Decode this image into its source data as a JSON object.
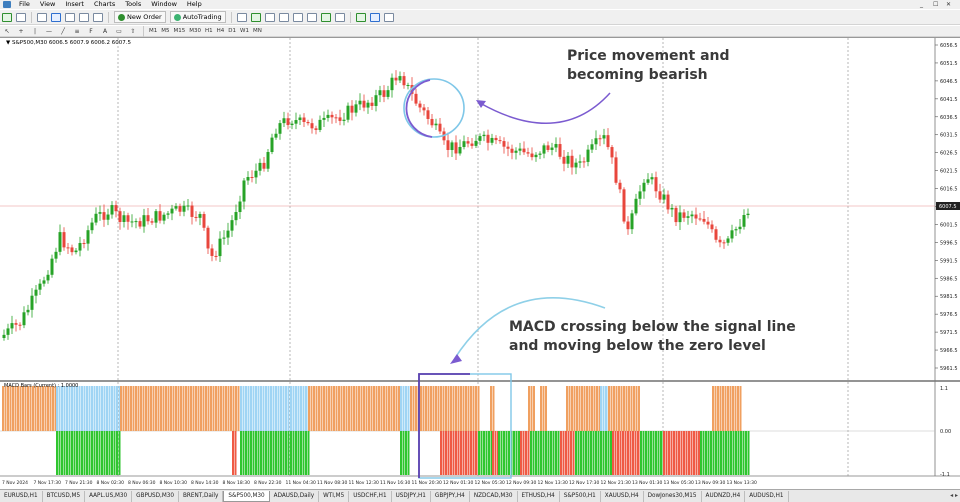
{
  "menu": {
    "items": [
      "File",
      "View",
      "Insert",
      "Charts",
      "Tools",
      "Window",
      "Help"
    ],
    "window_controls": [
      "_",
      "☐",
      "✕"
    ]
  },
  "toolbar": {
    "new_order_label": "New Order",
    "auto_trading_label": "AutoTrading",
    "timeframes": [
      "M1",
      "M5",
      "M15",
      "M30",
      "H1",
      "H4",
      "D1",
      "W1",
      "MN"
    ]
  },
  "chart": {
    "caption": "▼ S&P500,M30  6006.5 6007.9 6006.2 6007.5",
    "macd_caption": "MACD Bars (Current) : 1.0000",
    "current_price_label": "6007.5",
    "price_labels": [
      "6056.5",
      "6051.5",
      "6046.5",
      "6041.5",
      "6036.5",
      "6031.5",
      "6026.5",
      "6021.5",
      "6016.5",
      "6011.5",
      "6001.5",
      "5996.5",
      "5991.5",
      "5986.5",
      "5981.5",
      "5976.5",
      "5971.5",
      "5966.5",
      "5961.5"
    ],
    "macd_labels": [
      "1.1",
      "0.00",
      "-1.1"
    ],
    "time_labels": [
      "7 Nov 2024",
      "7 Nov 17:30",
      "7 Nov 21:30",
      "8 Nov 02:30",
      "8 Nov 06:30",
      "8 Nov 10:30",
      "8 Nov 14:30",
      "8 Nov 18:30",
      "8 Nov 22:30",
      "11 Nov 04:30",
      "11 Nov 08:30",
      "11 Nov 12:30",
      "11 Nov 16:30",
      "11 Nov 20:30",
      "12 Nov 01:30",
      "12 Nov 05:30",
      "12 Nov 09:30",
      "12 Nov 13:30",
      "12 Nov 17:30",
      "12 Nov 21:30",
      "13 Nov 01:30",
      "13 Nov 05:30",
      "13 Nov 09:30",
      "13 Nov 13:30"
    ],
    "colors": {
      "bull": "#27a327",
      "bear": "#e8463c",
      "macd_above_up": "#f0a060",
      "macd_above_down": "#9fd4f4",
      "macd_below_down": "#ef5a44",
      "macd_below_up": "#2fc62f",
      "annotation_arrow": "#7b5bd0",
      "annotation_box": "#5b3fb0"
    }
  },
  "annotations": {
    "top": "Price movement and becoming bearish",
    "bottom": "MACD crossing below the signal line and moving below the zero level"
  },
  "tabs": [
    "EURUSD,H1",
    "BTCUSD,M5",
    "AAPL.US,M30",
    "GBPUSD,M30",
    "BRENT,Daily",
    "S&P500,M30",
    "ADAUSD,Daily",
    "WTI,M5",
    "USDCHF,H1",
    "USDJPY,H1",
    "GBPJPY,H4",
    "NZDCAD,M30",
    "ETHUSD,H4",
    "S&P500,H1",
    "XAUUSD,H4",
    "DowJones30,M15",
    "AUDNZD,H4",
    "AUDUSD,H1"
  ],
  "active_tab": "S&P500,M30"
}
